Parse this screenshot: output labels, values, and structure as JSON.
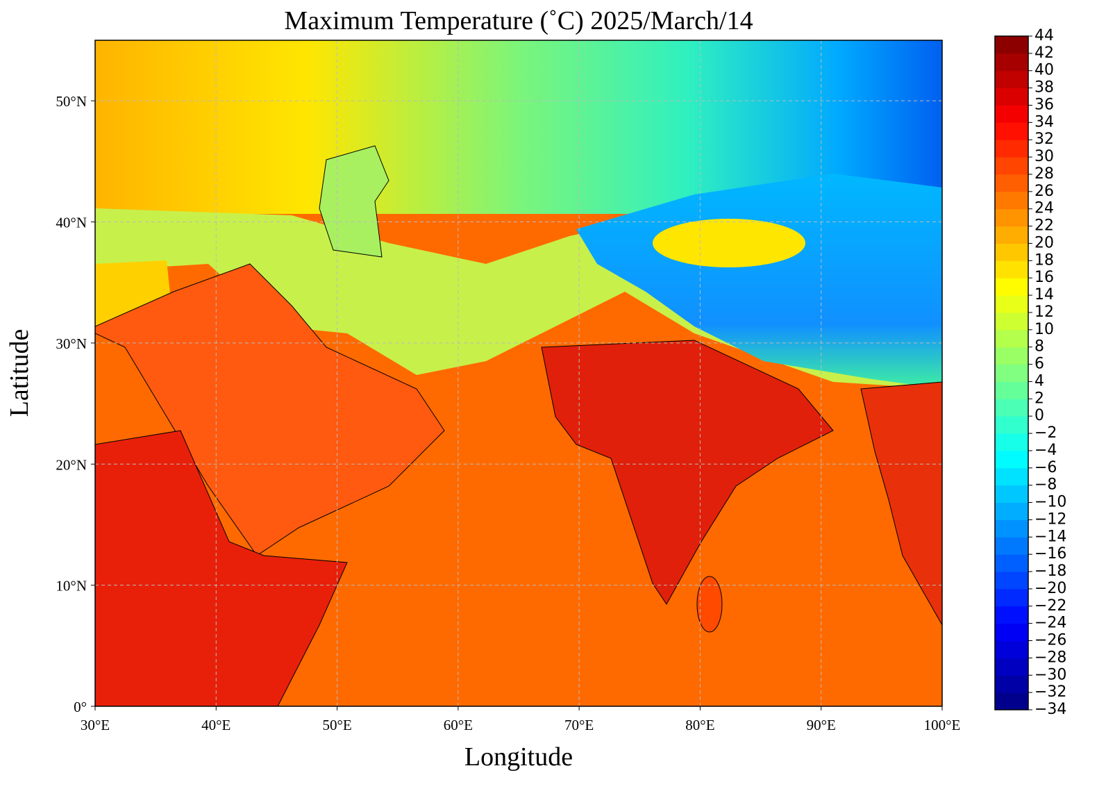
{
  "chart_data": {
    "type": "map",
    "title": "Maximum Temperature (˚C)  2025/March/14",
    "x_label": "Longitude",
    "y_label": "Latitude",
    "xlim": [
      30,
      100
    ],
    "ylim": [
      0,
      55
    ],
    "xticks": [
      {
        "value": 30,
        "label": "30°E"
      },
      {
        "value": 40,
        "label": "40°E"
      },
      {
        "value": 50,
        "label": "50°E"
      },
      {
        "value": 60,
        "label": "60°E"
      },
      {
        "value": 70,
        "label": "70°E"
      },
      {
        "value": 80,
        "label": "80°E"
      },
      {
        "value": 90,
        "label": "90°E"
      },
      {
        "value": 100,
        "label": "100°E"
      }
    ],
    "yticks": [
      {
        "value": 0,
        "label": "0°"
      },
      {
        "value": 10,
        "label": "10°N"
      },
      {
        "value": 20,
        "label": "20°N"
      },
      {
        "value": 30,
        "label": "30°N"
      },
      {
        "value": 40,
        "label": "40°N"
      },
      {
        "value": 50,
        "label": "50°N"
      }
    ],
    "grid": true,
    "colorbar": {
      "colormap": "jet",
      "lim": [
        -34,
        44
      ],
      "ticks": [
        {
          "value": -34,
          "label": "−34"
        },
        {
          "value": -32,
          "label": "−32"
        },
        {
          "value": -30,
          "label": "−30"
        },
        {
          "value": -28,
          "label": "−28"
        },
        {
          "value": -26,
          "label": "−26"
        },
        {
          "value": -24,
          "label": "−24"
        },
        {
          "value": -22,
          "label": "−22"
        },
        {
          "value": -20,
          "label": "−20"
        },
        {
          "value": -18,
          "label": "−18"
        },
        {
          "value": -16,
          "label": "−16"
        },
        {
          "value": -14,
          "label": "−14"
        },
        {
          "value": -12,
          "label": "−12"
        },
        {
          "value": -10,
          "label": "−10"
        },
        {
          "value": -8,
          "label": "−8"
        },
        {
          "value": -6,
          "label": "−6"
        },
        {
          "value": -4,
          "label": "−4"
        },
        {
          "value": -2,
          "label": "−2"
        },
        0,
        2,
        4,
        6,
        8,
        10,
        12,
        14,
        16,
        18,
        20,
        22,
        24,
        26,
        28,
        30,
        32,
        34,
        36,
        38,
        40,
        42,
        44
      ]
    }
  }
}
